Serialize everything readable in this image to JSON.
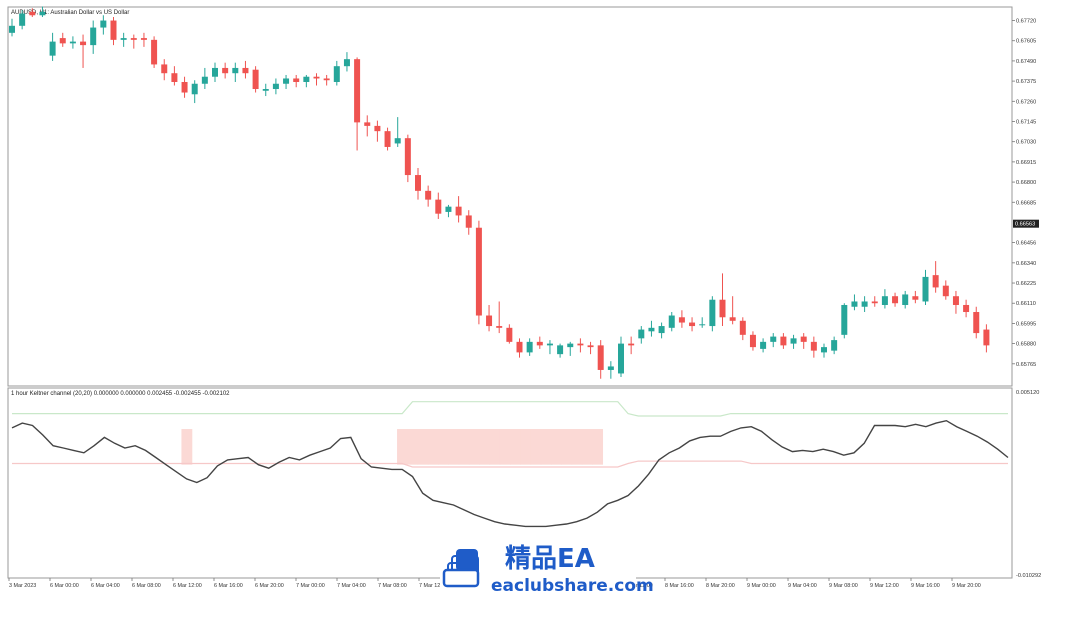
{
  "chart_data": [
    {
      "type": "candlestick",
      "title": "AUDUSD, H1:  Australian Dollar vs US Dollar",
      "ylim": [
        0.6565,
        0.6778
      ],
      "price_labels": [
        "0.67720",
        "0.67605",
        "0.67490",
        "0.67375",
        "0.67260",
        "0.67145",
        "0.67030",
        "0.66915",
        "0.66800",
        "0.66685",
        "0.66456",
        "0.66340",
        "0.66225",
        "0.66110",
        "0.65995",
        "0.65880",
        "0.65765"
      ],
      "current_price_label": "0.66563",
      "up_color": "#26a69a",
      "down_color": "#ef5350",
      "candles": [
        {
          "o": 0.6765,
          "h": 0.6773,
          "l": 0.6763,
          "c": 0.6769
        },
        {
          "o": 0.6769,
          "h": 0.6778,
          "l": 0.6767,
          "c": 0.6776
        },
        {
          "o": 0.6777,
          "h": 0.6779,
          "l": 0.6774,
          "c": 0.6775
        },
        {
          "o": 0.6775,
          "h": 0.678,
          "l": 0.6774,
          "c": 0.6777
        },
        {
          "o": 0.6752,
          "h": 0.6765,
          "l": 0.6749,
          "c": 0.676
        },
        {
          "o": 0.6762,
          "h": 0.6765,
          "l": 0.6757,
          "c": 0.6759
        },
        {
          "o": 0.6759,
          "h": 0.6763,
          "l": 0.6756,
          "c": 0.676
        },
        {
          "o": 0.676,
          "h": 0.6764,
          "l": 0.6745,
          "c": 0.6758
        },
        {
          "o": 0.6758,
          "h": 0.6772,
          "l": 0.6753,
          "c": 0.6768
        },
        {
          "o": 0.6768,
          "h": 0.6775,
          "l": 0.6764,
          "c": 0.6772
        },
        {
          "o": 0.6772,
          "h": 0.6774,
          "l": 0.6758,
          "c": 0.6761
        },
        {
          "o": 0.6761,
          "h": 0.6765,
          "l": 0.6757,
          "c": 0.6762
        },
        {
          "o": 0.6762,
          "h": 0.6764,
          "l": 0.6756,
          "c": 0.6761
        },
        {
          "o": 0.6762,
          "h": 0.6765,
          "l": 0.6757,
          "c": 0.6761
        },
        {
          "o": 0.6761,
          "h": 0.6763,
          "l": 0.6745,
          "c": 0.6747
        },
        {
          "o": 0.6747,
          "h": 0.675,
          "l": 0.6738,
          "c": 0.6742
        },
        {
          "o": 0.6742,
          "h": 0.6746,
          "l": 0.6735,
          "c": 0.6737
        },
        {
          "o": 0.6737,
          "h": 0.674,
          "l": 0.6728,
          "c": 0.6731
        },
        {
          "o": 0.673,
          "h": 0.6738,
          "l": 0.6725,
          "c": 0.6736
        },
        {
          "o": 0.6736,
          "h": 0.6745,
          "l": 0.6733,
          "c": 0.674
        },
        {
          "o": 0.674,
          "h": 0.6748,
          "l": 0.6737,
          "c": 0.6745
        },
        {
          "o": 0.6745,
          "h": 0.6748,
          "l": 0.6739,
          "c": 0.6742
        },
        {
          "o": 0.6742,
          "h": 0.6748,
          "l": 0.6737,
          "c": 0.6745
        },
        {
          "o": 0.6745,
          "h": 0.6749,
          "l": 0.6739,
          "c": 0.6742
        },
        {
          "o": 0.6744,
          "h": 0.6746,
          "l": 0.6731,
          "c": 0.6733
        },
        {
          "o": 0.6732,
          "h": 0.6736,
          "l": 0.6729,
          "c": 0.6733
        },
        {
          "o": 0.6733,
          "h": 0.6739,
          "l": 0.673,
          "c": 0.6736
        },
        {
          "o": 0.6736,
          "h": 0.6741,
          "l": 0.6733,
          "c": 0.6739
        },
        {
          "o": 0.6739,
          "h": 0.6741,
          "l": 0.6734,
          "c": 0.6737
        },
        {
          "o": 0.6737,
          "h": 0.6741,
          "l": 0.6734,
          "c": 0.674
        },
        {
          "o": 0.674,
          "h": 0.6742,
          "l": 0.6735,
          "c": 0.6739
        },
        {
          "o": 0.6739,
          "h": 0.6741,
          "l": 0.6735,
          "c": 0.6738
        },
        {
          "o": 0.6737,
          "h": 0.6749,
          "l": 0.6735,
          "c": 0.6746
        },
        {
          "o": 0.6746,
          "h": 0.6754,
          "l": 0.6743,
          "c": 0.675
        },
        {
          "o": 0.675,
          "h": 0.6751,
          "l": 0.6698,
          "c": 0.6714
        },
        {
          "o": 0.6714,
          "h": 0.6718,
          "l": 0.6706,
          "c": 0.6712
        },
        {
          "o": 0.6712,
          "h": 0.6715,
          "l": 0.6703,
          "c": 0.6709
        },
        {
          "o": 0.6709,
          "h": 0.6711,
          "l": 0.6698,
          "c": 0.67
        },
        {
          "o": 0.6702,
          "h": 0.6717,
          "l": 0.67,
          "c": 0.6705
        },
        {
          "o": 0.6705,
          "h": 0.6707,
          "l": 0.668,
          "c": 0.6684
        },
        {
          "o": 0.6684,
          "h": 0.6688,
          "l": 0.667,
          "c": 0.6675
        },
        {
          "o": 0.6675,
          "h": 0.6678,
          "l": 0.6666,
          "c": 0.667
        },
        {
          "o": 0.667,
          "h": 0.6674,
          "l": 0.6659,
          "c": 0.6662
        },
        {
          "o": 0.6663,
          "h": 0.6667,
          "l": 0.666,
          "c": 0.6666
        },
        {
          "o": 0.6666,
          "h": 0.6672,
          "l": 0.6657,
          "c": 0.6661
        },
        {
          "o": 0.6661,
          "h": 0.6664,
          "l": 0.665,
          "c": 0.6654
        },
        {
          "o": 0.6654,
          "h": 0.6658,
          "l": 0.6599,
          "c": 0.6604
        },
        {
          "o": 0.6604,
          "h": 0.661,
          "l": 0.6595,
          "c": 0.6598
        },
        {
          "o": 0.6598,
          "h": 0.6612,
          "l": 0.6594,
          "c": 0.6597
        },
        {
          "o": 0.6597,
          "h": 0.6599,
          "l": 0.6588,
          "c": 0.6589
        },
        {
          "o": 0.6589,
          "h": 0.6591,
          "l": 0.658,
          "c": 0.6583
        },
        {
          "o": 0.6583,
          "h": 0.6591,
          "l": 0.6581,
          "c": 0.6589
        },
        {
          "o": 0.6589,
          "h": 0.6592,
          "l": 0.6585,
          "c": 0.6587
        },
        {
          "o": 0.6587,
          "h": 0.659,
          "l": 0.6582,
          "c": 0.6588
        },
        {
          "o": 0.6582,
          "h": 0.6588,
          "l": 0.658,
          "c": 0.6587
        },
        {
          "o": 0.6586,
          "h": 0.6589,
          "l": 0.6581,
          "c": 0.6588
        },
        {
          "o": 0.6588,
          "h": 0.6591,
          "l": 0.6583,
          "c": 0.6587
        },
        {
          "o": 0.6587,
          "h": 0.6589,
          "l": 0.6582,
          "c": 0.6586
        },
        {
          "o": 0.6587,
          "h": 0.659,
          "l": 0.6568,
          "c": 0.6573
        },
        {
          "o": 0.6573,
          "h": 0.6578,
          "l": 0.6568,
          "c": 0.6575
        },
        {
          "o": 0.6571,
          "h": 0.6592,
          "l": 0.6569,
          "c": 0.6588
        },
        {
          "o": 0.6588,
          "h": 0.6592,
          "l": 0.6582,
          "c": 0.6587
        },
        {
          "o": 0.6591,
          "h": 0.6598,
          "l": 0.6588,
          "c": 0.6596
        },
        {
          "o": 0.6595,
          "h": 0.6601,
          "l": 0.6592,
          "c": 0.6597
        },
        {
          "o": 0.6594,
          "h": 0.66,
          "l": 0.6591,
          "c": 0.6598
        },
        {
          "o": 0.6597,
          "h": 0.6606,
          "l": 0.6595,
          "c": 0.6604
        },
        {
          "o": 0.6603,
          "h": 0.6607,
          "l": 0.6597,
          "c": 0.66
        },
        {
          "o": 0.66,
          "h": 0.6603,
          "l": 0.6595,
          "c": 0.6598
        },
        {
          "o": 0.6599,
          "h": 0.6603,
          "l": 0.6597,
          "c": 0.6599
        },
        {
          "o": 0.6598,
          "h": 0.6615,
          "l": 0.6595,
          "c": 0.6613
        },
        {
          "o": 0.6613,
          "h": 0.6628,
          "l": 0.6598,
          "c": 0.6603
        },
        {
          "o": 0.6603,
          "h": 0.6615,
          "l": 0.6599,
          "c": 0.6601
        },
        {
          "o": 0.6601,
          "h": 0.6603,
          "l": 0.659,
          "c": 0.6593
        },
        {
          "o": 0.6593,
          "h": 0.6595,
          "l": 0.6584,
          "c": 0.6586
        },
        {
          "o": 0.6585,
          "h": 0.6591,
          "l": 0.6583,
          "c": 0.6589
        },
        {
          "o": 0.6589,
          "h": 0.6594,
          "l": 0.6586,
          "c": 0.6592
        },
        {
          "o": 0.6592,
          "h": 0.6594,
          "l": 0.6585,
          "c": 0.6587
        },
        {
          "o": 0.6588,
          "h": 0.6593,
          "l": 0.6585,
          "c": 0.6591
        },
        {
          "o": 0.6592,
          "h": 0.6594,
          "l": 0.6585,
          "c": 0.6589
        },
        {
          "o": 0.6589,
          "h": 0.6592,
          "l": 0.658,
          "c": 0.6584
        },
        {
          "o": 0.6583,
          "h": 0.6588,
          "l": 0.658,
          "c": 0.6586
        },
        {
          "o": 0.6584,
          "h": 0.6592,
          "l": 0.6582,
          "c": 0.659
        },
        {
          "o": 0.6593,
          "h": 0.6611,
          "l": 0.6591,
          "c": 0.661
        },
        {
          "o": 0.6609,
          "h": 0.6616,
          "l": 0.6607,
          "c": 0.6612
        },
        {
          "o": 0.6609,
          "h": 0.6615,
          "l": 0.6606,
          "c": 0.6612
        },
        {
          "o": 0.6612,
          "h": 0.6615,
          "l": 0.6609,
          "c": 0.6611
        },
        {
          "o": 0.661,
          "h": 0.6619,
          "l": 0.6608,
          "c": 0.6615
        },
        {
          "o": 0.6615,
          "h": 0.6617,
          "l": 0.6609,
          "c": 0.6611
        },
        {
          "o": 0.661,
          "h": 0.6618,
          "l": 0.6608,
          "c": 0.6616
        },
        {
          "o": 0.6615,
          "h": 0.6618,
          "l": 0.6611,
          "c": 0.6613
        },
        {
          "o": 0.6612,
          "h": 0.663,
          "l": 0.661,
          "c": 0.6626
        },
        {
          "o": 0.6627,
          "h": 0.6635,
          "l": 0.6617,
          "c": 0.662
        },
        {
          "o": 0.6621,
          "h": 0.6624,
          "l": 0.6613,
          "c": 0.6615
        },
        {
          "o": 0.6615,
          "h": 0.6618,
          "l": 0.6605,
          "c": 0.661
        },
        {
          "o": 0.661,
          "h": 0.6613,
          "l": 0.6603,
          "c": 0.6606
        },
        {
          "o": 0.6606,
          "h": 0.6609,
          "l": 0.6591,
          "c": 0.6594
        },
        {
          "o": 0.6596,
          "h": 0.6599,
          "l": 0.6583,
          "c": 0.6587
        }
      ]
    },
    {
      "type": "line",
      "title": "1 hour Keltner channel (20,20) 0.000000 0.000000 0.002455 -0.002455 -0.002102",
      "ylim": [
        -0.010292,
        0.00512
      ],
      "y_labels": [
        "0.005120",
        "-0.010292"
      ],
      "x_labels": [
        "3 Mar 2023",
        "6 Mar 00:00",
        "6 Mar 04:00",
        "6 Mar 08:00",
        "6 Mar 12:00",
        "6 Mar 16:00",
        "6 Mar 20:00",
        "7 Mar 00:00",
        "7 Mar 04:00",
        "7 Mar 08:00",
        "7 Mar 12",
        "8 Mar 12:00",
        "8 Mar 16:00",
        "8 Mar 20:00",
        "9 Mar 00:00",
        "9 Mar 04:00",
        "9 Mar 08:00",
        "9 Mar 12:00",
        "9 Mar 16:00",
        "9 Mar 20:00"
      ],
      "series": [
        {
          "color": "#444444",
          "values": [
            0.0021,
            0.0025,
            0.0023,
            0.0015,
            0.0006,
            0.0004,
            0.0002,
            0.0,
            0.0006,
            0.0013,
            0.0008,
            0.0004,
            0.0006,
            0.0002,
            -0.0004,
            -0.001,
            -0.0016,
            -0.0022,
            -0.0025,
            -0.0021,
            -0.0011,
            -0.0006,
            -0.0005,
            -0.0004,
            -0.001,
            -0.0013,
            -0.0008,
            -0.0004,
            -0.0006,
            -0.0002,
            0.0001,
            0.0004,
            0.0012,
            0.0013,
            -0.0005,
            -0.0012,
            -0.0013,
            -0.0014,
            -0.0014,
            -0.002,
            -0.0034,
            -0.004,
            -0.0042,
            -0.0044,
            -0.0048,
            -0.0052,
            -0.0055,
            -0.0058,
            -0.006,
            -0.0061,
            -0.0062,
            -0.0062,
            -0.0062,
            -0.0061,
            -0.006,
            -0.0058,
            -0.0055,
            -0.005,
            -0.0043,
            -0.004,
            -0.0036,
            -0.0028,
            -0.0018,
            -0.0006,
            0.0,
            0.0004,
            0.001,
            0.0013,
            0.0014,
            0.0014,
            0.0018,
            0.0021,
            0.0022,
            0.0018,
            0.0011,
            0.0005,
            0.0001,
            0.0002,
            0.0001,
            0.0003,
            0.0001,
            -0.0002,
            0.0,
            0.0008,
            0.0023,
            0.0023,
            0.0023,
            0.0022,
            0.0024,
            0.0022,
            0.0025,
            0.0027,
            0.0022,
            0.0018,
            0.0014,
            0.0009,
            0.0003,
            -0.0004
          ]
        }
      ],
      "channel_color_upper": "#c9e8c9",
      "channel_color_lower": "#f6c8c8",
      "histogram_color": "#fbd9d5"
    }
  ],
  "watermark": {
    "cn_text": "精品EA",
    "url_text": "eaclubshare.com",
    "color": "#1f5cc8"
  }
}
